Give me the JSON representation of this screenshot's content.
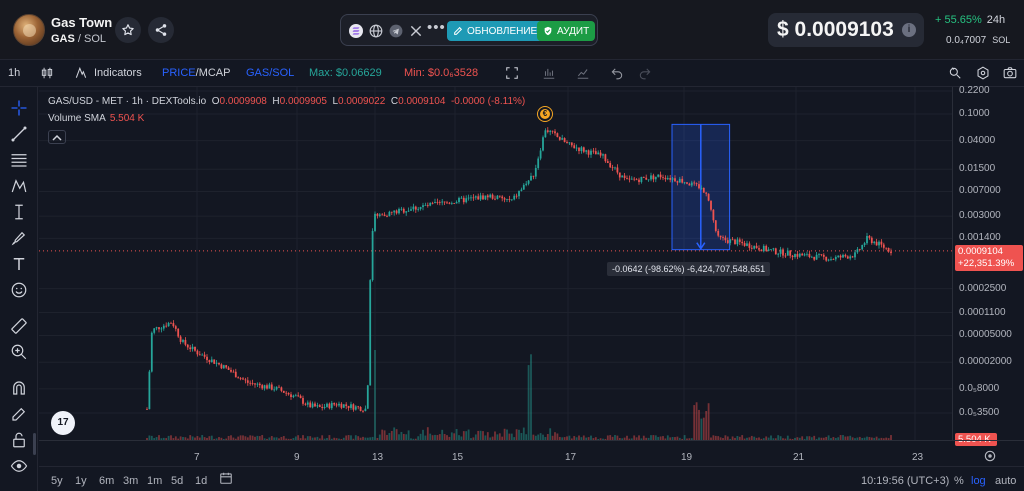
{
  "header": {
    "token_name": "Gas Town",
    "token_symbol": "GAS",
    "pair_separator": " / ",
    "pair_quote": "SOL",
    "social_more": "•••",
    "update_label": "ОБНОВЛЕНИЕ",
    "audit_label": "АУДИТ",
    "price": "$ 0.0009103",
    "price_info": "i",
    "change_pct": "+ 55.65%",
    "change_period": "24h",
    "sol_price": "0.0₄7007",
    "sol_label": "SOL"
  },
  "toolbar": {
    "interval": "1h",
    "indicators_label": "Indicators",
    "price_label": "PRICE",
    "price_sep": "/",
    "mcap_label": "MCAP",
    "pair_toggle": "GAS/SOL",
    "max_label": "Max: $0.06629",
    "min_label": "Min: $0.0₆3528"
  },
  "legend": {
    "pair": "GAS/USD - MET · 1h · DEXTools.io",
    "o_label": "O",
    "o_value": "0.0009908",
    "h_label": "H",
    "h_value": "0.0009905",
    "l_label": "L",
    "l_value": "0.0009022",
    "c_label": "C",
    "c_value": "0.0009104",
    "change": "-0.0000 (-8.11%)",
    "volume_label": "Volume SMA",
    "volume_value": "5.504 K"
  },
  "measure_label": "-0.0642 (-98.62%) -6,424,707,548,651",
  "event_marker": "€",
  "tv_logo": "17",
  "price_scale": {
    "ticks": [
      "0.2200",
      "0.1000",
      "0.04000",
      "0.01500",
      "0.007000",
      "0.003000",
      "0.001400",
      "0.0002500",
      "0.0001100",
      "0.00005000",
      "0.00002000",
      "0.0₅8000",
      "0.0₅3500"
    ],
    "current_price": "0.0009104",
    "current_change": "+22,351.39%",
    "volume_badge": "5.504 K"
  },
  "time_axis": {
    "labels": [
      "7",
      "9",
      "13",
      "15",
      "17",
      "19",
      "21",
      "23"
    ],
    "clock": "10:19:56 (UTC+3)"
  },
  "bottom_bar": {
    "ranges": [
      "5y",
      "1y",
      "6m",
      "3m",
      "1m",
      "5d",
      "1d"
    ],
    "percent_label": "%",
    "log_label": "log",
    "auto_label": "auto"
  },
  "colors": {
    "up": "#26a69a",
    "down": "#ef5350",
    "accent": "#2962ff",
    "background": "#131722"
  },
  "chart_data": {
    "type": "candlestick",
    "pair": "GAS/USD",
    "interval": "1h",
    "yscale": "log",
    "x_tick_labels": [
      "7",
      "9",
      "13",
      "15",
      "17",
      "19",
      "21",
      "23"
    ],
    "y_tick_labels": [
      "0.2200",
      "0.1000",
      "0.04000",
      "0.01500",
      "0.007000",
      "0.003000",
      "0.001400",
      "0.0002500",
      "0.0001100",
      "0.00005000",
      "0.00002000",
      "0.0₅8000",
      "0.0₅3500"
    ],
    "ylim": [
      3.5e-06,
      0.22
    ],
    "series_close": [
      {
        "day": 6.0,
        "price": 4e-06
      },
      {
        "day": 6.1,
        "price": 6e-05
      },
      {
        "day": 6.5,
        "price": 8e-05
      },
      {
        "day": 6.7,
        "price": 4e-05
      },
      {
        "day": 7.0,
        "price": 2.8e-05
      },
      {
        "day": 7.6,
        "price": 1.6e-05
      },
      {
        "day": 8.0,
        "price": 1e-05
      },
      {
        "day": 8.6,
        "price": 8e-06
      },
      {
        "day": 9.0,
        "price": 6e-06
      },
      {
        "day": 9.6,
        "price": 4.5e-06
      },
      {
        "day": 10.2,
        "price": 4.2e-06
      },
      {
        "day": 11.0,
        "price": 4.8e-06
      },
      {
        "day": 12.6,
        "price": 4e-06
      },
      {
        "day": 12.8,
        "price": 0.0014
      },
      {
        "day": 13.0,
        "price": 0.003
      },
      {
        "day": 14.0,
        "price": 0.004
      },
      {
        "day": 15.0,
        "price": 0.005
      },
      {
        "day": 15.6,
        "price": 0.006
      },
      {
        "day": 16.0,
        "price": 0.005
      },
      {
        "day": 16.4,
        "price": 0.013
      },
      {
        "day": 16.6,
        "price": 0.06
      },
      {
        "day": 17.0,
        "price": 0.035
      },
      {
        "day": 17.6,
        "price": 0.023
      },
      {
        "day": 18.0,
        "price": 0.01
      },
      {
        "day": 18.6,
        "price": 0.012
      },
      {
        "day": 19.0,
        "price": 0.01
      },
      {
        "day": 19.4,
        "price": 0.007
      },
      {
        "day": 19.6,
        "price": 0.0014
      },
      {
        "day": 20.0,
        "price": 0.0012
      },
      {
        "day": 20.6,
        "price": 0.0009
      },
      {
        "day": 21.0,
        "price": 0.0008
      },
      {
        "day": 21.6,
        "price": 0.0007
      },
      {
        "day": 22.0,
        "price": 0.0008
      },
      {
        "day": 22.2,
        "price": 0.0014
      },
      {
        "day": 22.6,
        "price": 0.0009104
      }
    ],
    "measure": {
      "from_day": 19.0,
      "to_day": 19.6,
      "change": "-0.0642 (-98.62%)",
      "volume": "-6,424,707,548,651"
    },
    "volume_sma": "5.504 K"
  }
}
